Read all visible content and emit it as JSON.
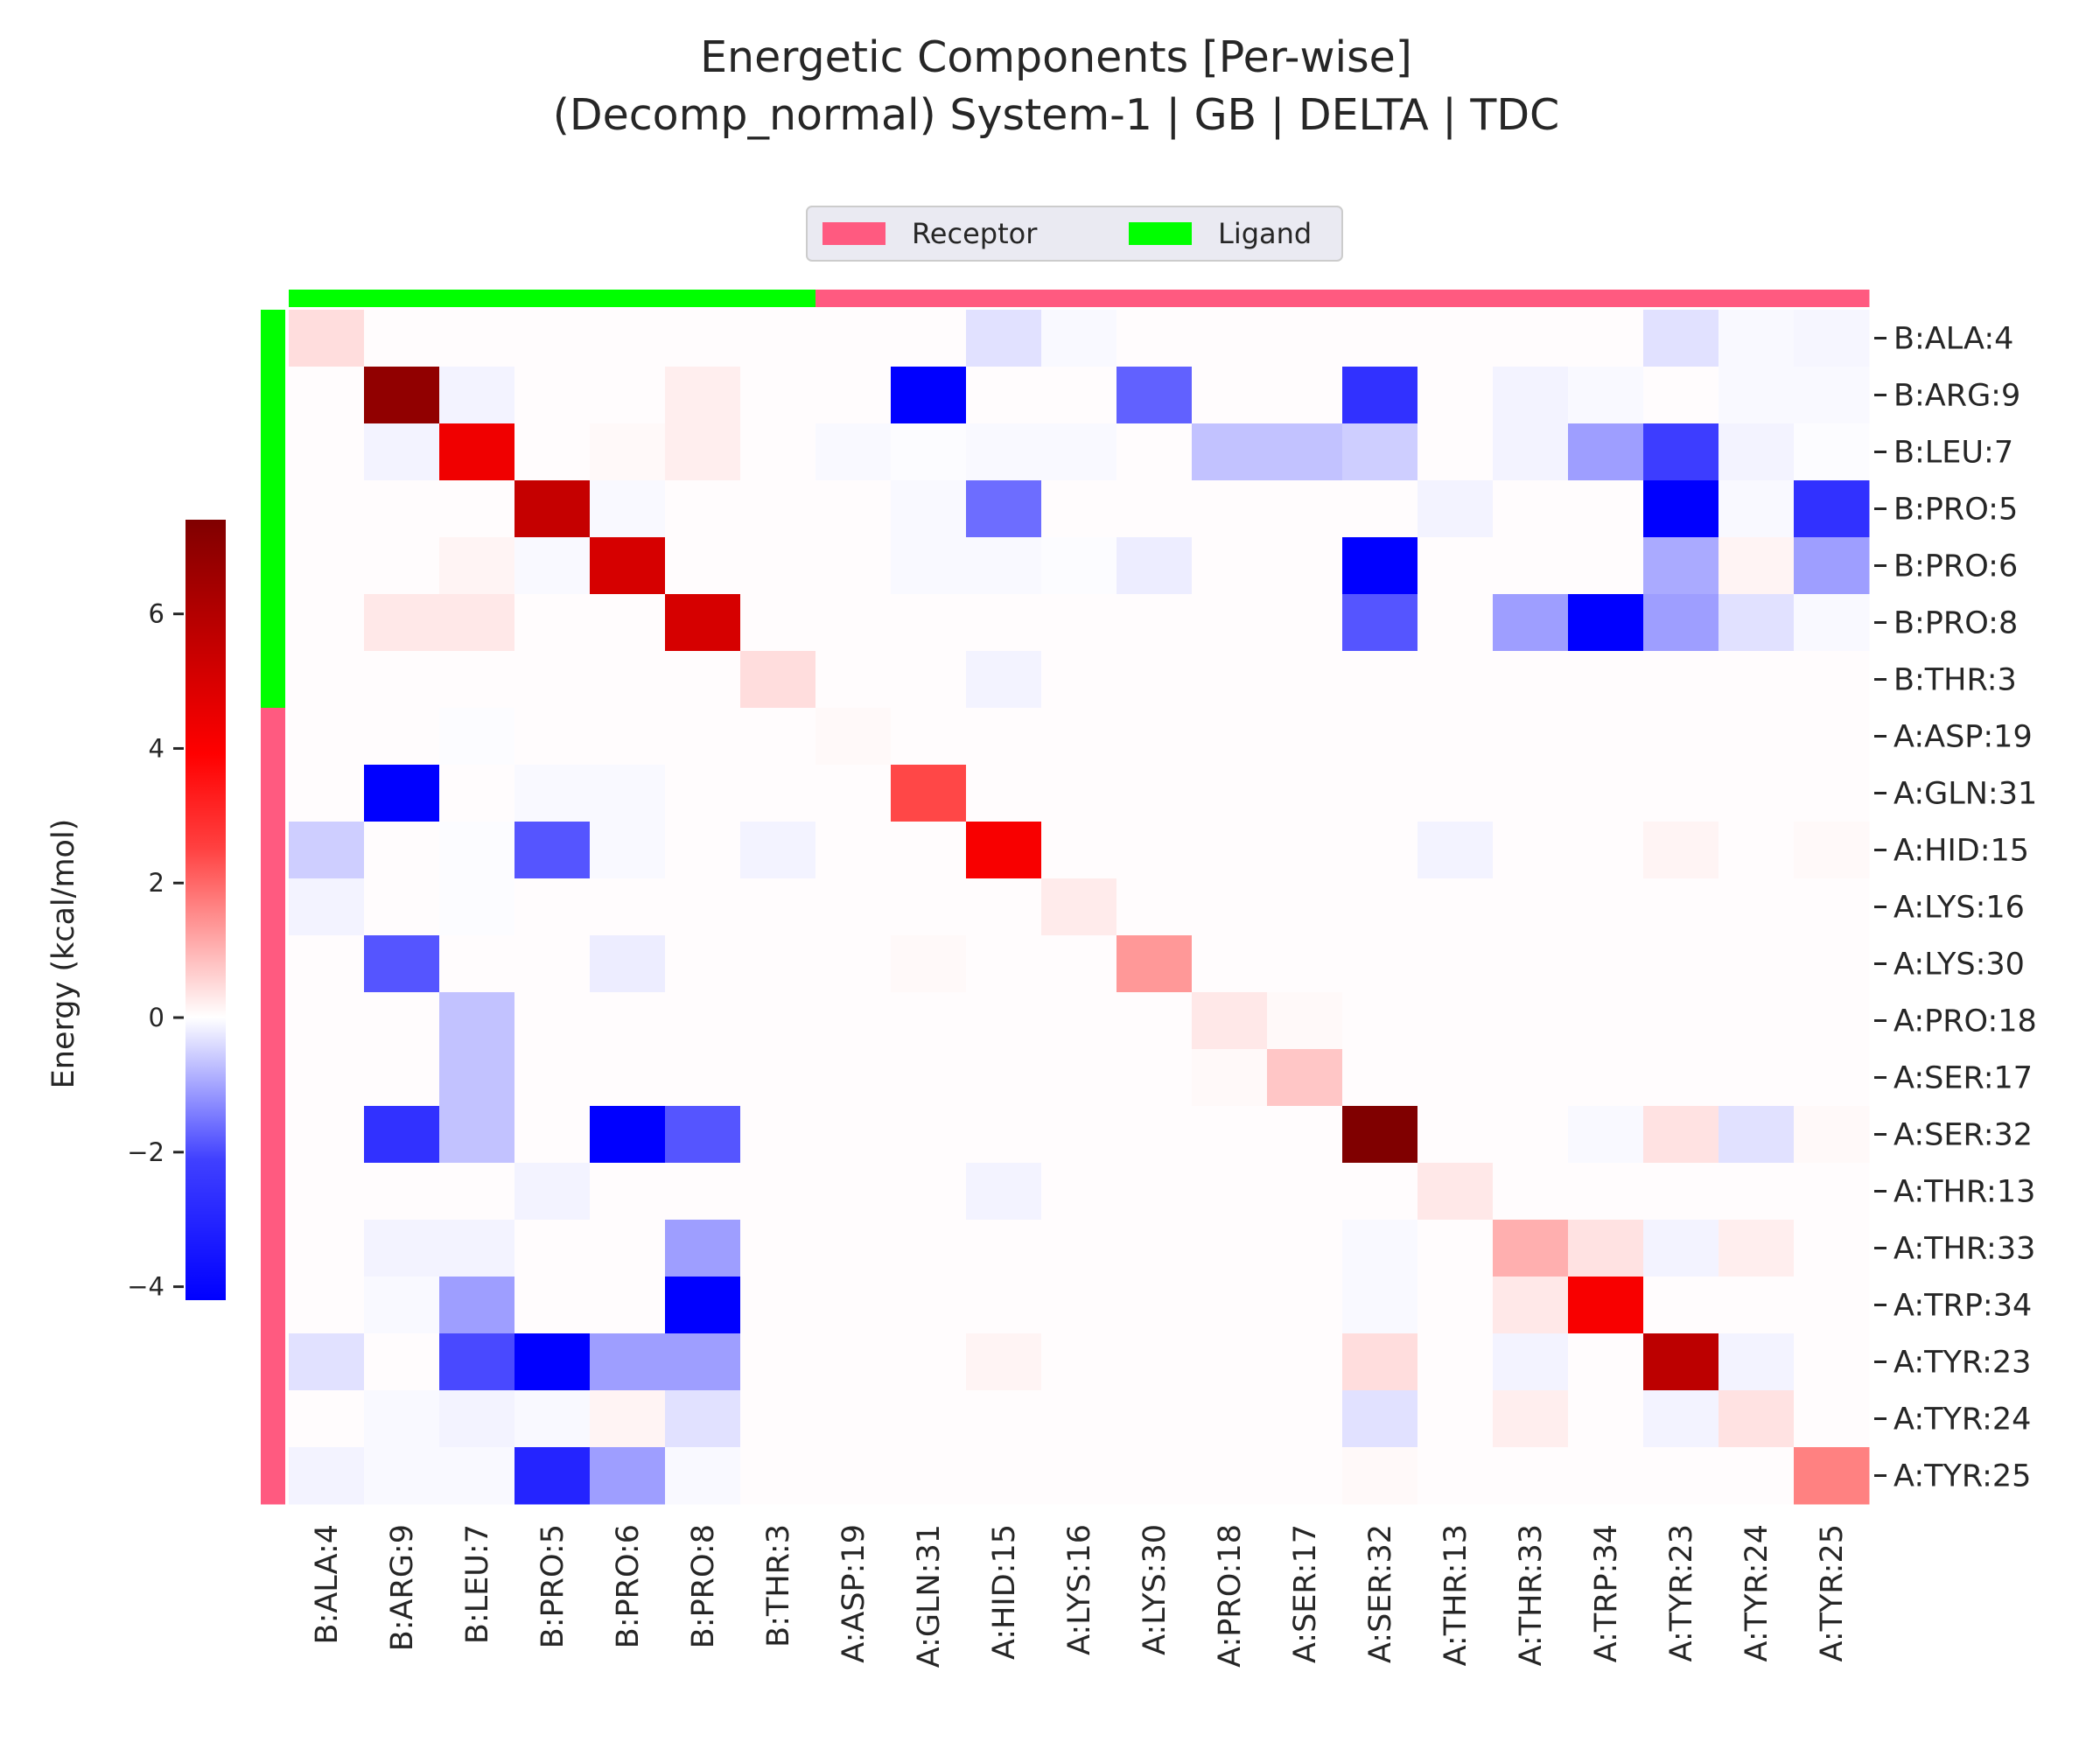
{
  "chart_data": {
    "type": "heatmap",
    "title_lines": [
      "Energetic Components [Per-wise]",
      "(Decomp_normal) System-1 | GB | DELTA | TDC"
    ],
    "residues": [
      "B:ALA:4",
      "B:ARG:9",
      "B:LEU:7",
      "B:PRO:5",
      "B:PRO:6",
      "B:PRO:8",
      "B:THR:3",
      "A:ASP:19",
      "A:GLN:31",
      "A:HID:15",
      "A:LYS:16",
      "A:LYS:30",
      "A:PRO:18",
      "A:SER:17",
      "A:SER:32",
      "A:THR:13",
      "A:THR:33",
      "A:TRP:34",
      "A:TYR:23",
      "A:TYR:24",
      "A:TYR:25"
    ],
    "groups": [
      "Ligand",
      "Ligand",
      "Ligand",
      "Ligand",
      "Ligand",
      "Ligand",
      "Ligand",
      "Receptor",
      "Receptor",
      "Receptor",
      "Receptor",
      "Receptor",
      "Receptor",
      "Receptor",
      "Receptor",
      "Receptor",
      "Receptor",
      "Receptor",
      "Receptor",
      "Receptor",
      "Receptor"
    ],
    "legend": [
      {
        "label": "Receptor",
        "color": "#ff5a80"
      },
      {
        "label": "Ligand",
        "color": "#00ff00"
      }
    ],
    "colorbar": {
      "label": "Energy (kcal/mol)",
      "range": [
        -4.2,
        7.4
      ],
      "ticks": [
        6,
        4,
        2,
        0,
        -2,
        -4
      ],
      "tick_labels": [
        "6",
        "4",
        "2",
        "0",
        "−2",
        "−4"
      ]
    },
    "values": [
      [
        0.6,
        0,
        0,
        0,
        0,
        0,
        0,
        0,
        0,
        -0.5,
        -0.1,
        0,
        0,
        0,
        0,
        0,
        0,
        0,
        -0.5,
        -0.1,
        -0.15
      ],
      [
        0,
        7.0,
        -0.2,
        0,
        0,
        0.3,
        0,
        0,
        -4.2,
        0,
        0,
        -2.6,
        0,
        0,
        -3.4,
        0,
        -0.2,
        -0.1,
        0,
        -0.1,
        -0.1
      ],
      [
        0,
        -0.2,
        4.8,
        0,
        0.1,
        0.3,
        0,
        -0.1,
        -0.05,
        -0.1,
        -0.1,
        0,
        -1.0,
        -1.0,
        -0.8,
        0,
        -0.2,
        -1.6,
        -3.2,
        -0.2,
        -0.05
      ],
      [
        0,
        0,
        0,
        5.8,
        -0.1,
        0,
        0,
        0,
        -0.1,
        -2.4,
        0,
        0,
        0,
        0,
        0,
        -0.2,
        0,
        0,
        -4.2,
        -0.1,
        -3.4
      ],
      [
        0,
        0,
        0.2,
        -0.1,
        5.4,
        0,
        0,
        0,
        -0.1,
        -0.1,
        -0.05,
        -0.3,
        0,
        0,
        -4.2,
        0,
        0,
        0,
        -1.4,
        0.2,
        -1.6
      ],
      [
        0,
        0.4,
        0.4,
        0,
        0,
        5.4,
        0,
        0,
        0,
        0,
        0,
        0,
        0,
        0,
        -2.8,
        0,
        -1.6,
        -4.4,
        -1.6,
        -0.5,
        -0.1
      ],
      [
        0,
        0,
        0,
        0,
        0,
        0,
        0.6,
        0,
        0,
        -0.2,
        0,
        0,
        0,
        0,
        0,
        0,
        0,
        0,
        0,
        0,
        0
      ],
      [
        0,
        0,
        -0.05,
        0,
        0,
        0,
        0,
        0.1,
        0,
        0,
        0,
        0,
        0,
        0,
        0,
        0,
        0,
        0,
        0,
        0,
        0
      ],
      [
        0,
        -4.2,
        0,
        -0.1,
        -0.1,
        0,
        0,
        0,
        3.2,
        0,
        0,
        0,
        0,
        0,
        0,
        0,
        0,
        0,
        0,
        0,
        0
      ],
      [
        -0.8,
        0,
        -0.05,
        -2.8,
        -0.1,
        0,
        -0.2,
        0,
        0,
        4.6,
        0,
        0,
        0,
        0,
        0,
        -0.2,
        0,
        0,
        0.2,
        0,
        0.1
      ],
      [
        -0.2,
        0,
        -0.05,
        0,
        0,
        0,
        0,
        0,
        0,
        0,
        0.35,
        0,
        0,
        0,
        0,
        0,
        0,
        0,
        0,
        0,
        0
      ],
      [
        0,
        -2.8,
        0,
        0,
        -0.3,
        0,
        0,
        0,
        0.1,
        0,
        0,
        1.8,
        0,
        0,
        0,
        0,
        0,
        0,
        0,
        0,
        0
      ],
      [
        0,
        0,
        -1.0,
        0,
        0,
        0,
        0,
        0,
        0,
        0,
        0,
        0,
        0.4,
        0.1,
        0,
        0,
        0,
        0,
        0,
        0,
        0
      ],
      [
        0,
        0,
        -1.0,
        0,
        0,
        0,
        0,
        0,
        0,
        0,
        0,
        0,
        0.1,
        1.0,
        0,
        0,
        0,
        0,
        0,
        0,
        0
      ],
      [
        0,
        -3.4,
        -1.0,
        0,
        -4.2,
        -2.8,
        0,
        0,
        0,
        0,
        0,
        0,
        0,
        0,
        7.4,
        0,
        0,
        -0.1,
        0.5,
        -0.5,
        0.1
      ],
      [
        0,
        0,
        0,
        -0.2,
        0,
        0,
        0,
        0,
        0,
        -0.2,
        0,
        0,
        0,
        0,
        0,
        0.4,
        0,
        0,
        0,
        0,
        0
      ],
      [
        0,
        -0.2,
        -0.2,
        0,
        0,
        -1.6,
        0,
        0,
        0,
        0,
        0,
        0,
        0,
        0,
        -0.1,
        0,
        1.4,
        0.5,
        -0.2,
        0.3,
        0
      ],
      [
        0,
        -0.1,
        -1.6,
        0,
        0,
        -4.2,
        0,
        0,
        0,
        0,
        0,
        0,
        0,
        0,
        -0.1,
        0,
        0.4,
        4.6,
        0,
        0,
        0
      ],
      [
        -0.5,
        0,
        -3.0,
        -4.4,
        -1.6,
        -1.6,
        0,
        0,
        0,
        0.2,
        0,
        0,
        0,
        0,
        0.6,
        0,
        -0.2,
        0,
        6.0,
        -0.2,
        0
      ],
      [
        0,
        -0.1,
        -0.2,
        -0.1,
        0.2,
        -0.5,
        0,
        0,
        0,
        0,
        0,
        0,
        0,
        0,
        -0.5,
        0,
        0.3,
        0,
        -0.2,
        0.5,
        0
      ],
      [
        -0.2,
        -0.1,
        -0.1,
        -3.6,
        -1.6,
        -0.1,
        0,
        0,
        0,
        0,
        0,
        0,
        0,
        0,
        0.1,
        0,
        0,
        0,
        0,
        0,
        2.2
      ]
    ]
  }
}
